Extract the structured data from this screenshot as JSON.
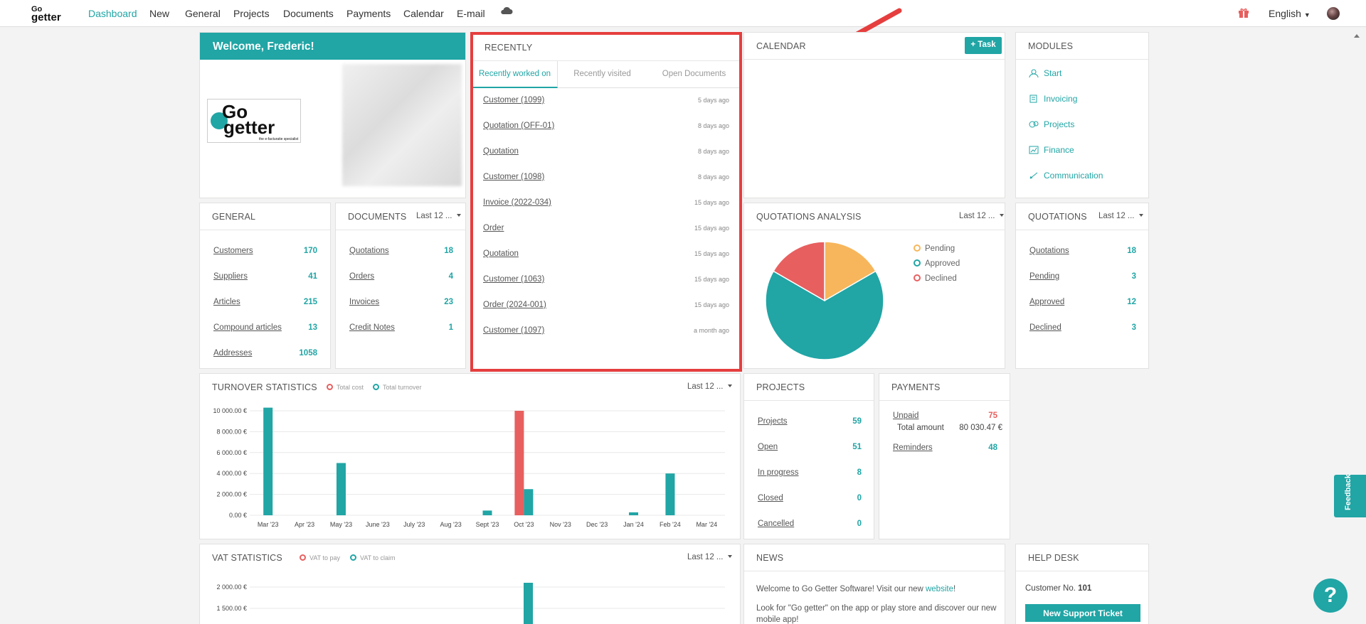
{
  "nav": {
    "logo_top": "Go",
    "logo_bottom": "getter",
    "items": [
      "Dashboard",
      "New",
      "General",
      "Projects",
      "Documents",
      "Payments",
      "Calendar",
      "E-mail"
    ],
    "language": "English"
  },
  "welcome": {
    "title": "Welcome, Frederic!",
    "logo_line1": "Go",
    "logo_line2": "getter",
    "logo_tagline": "the e-facturatie specialist"
  },
  "recently": {
    "title": "RECENTLY",
    "tabs": [
      "Recently worked on",
      "Recently visited",
      "Open Documents"
    ],
    "items": [
      {
        "label": "Customer (1099)",
        "time": "5 days ago"
      },
      {
        "label": "Quotation (OFF-01)",
        "time": "8 days ago"
      },
      {
        "label": "Quotation",
        "time": "8 days ago"
      },
      {
        "label": "Customer (1098)",
        "time": "8 days ago"
      },
      {
        "label": "Invoice (2022-034)",
        "time": "15 days ago"
      },
      {
        "label": "Order",
        "time": "15 days ago"
      },
      {
        "label": "Quotation",
        "time": "15 days ago"
      },
      {
        "label": "Customer (1063)",
        "time": "15 days ago"
      },
      {
        "label": "Order (2024-001)",
        "time": "15 days ago"
      },
      {
        "label": "Customer (1097)",
        "time": "a month ago"
      }
    ]
  },
  "calendar": {
    "title": "CALENDAR",
    "task_button": "+ Task"
  },
  "modules": {
    "title": "MODULES",
    "items": [
      "Start",
      "Invoicing",
      "Projects",
      "Finance",
      "Communication"
    ]
  },
  "general": {
    "title": "GENERAL",
    "rows": [
      {
        "label": "Customers",
        "value": "170"
      },
      {
        "label": "Suppliers",
        "value": "41"
      },
      {
        "label": "Articles",
        "value": "215"
      },
      {
        "label": "Compound articles",
        "value": "13"
      },
      {
        "label": "Addresses",
        "value": "1058"
      }
    ]
  },
  "documents": {
    "title": "DOCUMENTS",
    "filter": "Last 12 ...",
    "rows": [
      {
        "label": "Quotations",
        "value": "18"
      },
      {
        "label": "Orders",
        "value": "4"
      },
      {
        "label": "Invoices",
        "value": "23"
      },
      {
        "label": "Credit Notes",
        "value": "1"
      }
    ]
  },
  "quotations_analysis": {
    "title": "QUOTATIONS ANALYSIS",
    "filter": "Last 12 ...",
    "legend": [
      "Pending",
      "Approved",
      "Declined"
    ],
    "colors": [
      "#f7b65b",
      "#21a5a5",
      "#e85f5f"
    ]
  },
  "quotations": {
    "title": "QUOTATIONS",
    "filter": "Last 12 ...",
    "rows": [
      {
        "label": "Quotations",
        "value": "18"
      },
      {
        "label": "Pending",
        "value": "3"
      },
      {
        "label": "Approved",
        "value": "12"
      },
      {
        "label": "Declined",
        "value": "3"
      }
    ]
  },
  "turnover": {
    "title": "TURNOVER STATISTICS",
    "legend": [
      "Total cost",
      "Total turnover"
    ],
    "filter": "Last 12 ..."
  },
  "projects": {
    "title": "PROJECTS",
    "rows": [
      {
        "label": "Projects",
        "value": "59"
      },
      {
        "label": "Open",
        "value": "51"
      },
      {
        "label": "In progress",
        "value": "8"
      },
      {
        "label": "Closed",
        "value": "0"
      },
      {
        "label": "Cancelled",
        "value": "0"
      }
    ]
  },
  "payments": {
    "title": "PAYMENTS",
    "unpaid_label": "Unpaid",
    "unpaid_value": "75",
    "total_label": "Total amount",
    "total_value": "80 030.47 €",
    "reminders_label": "Reminders",
    "reminders_value": "48"
  },
  "vat": {
    "title": "VAT STATISTICS",
    "legend": [
      "VAT to pay",
      "VAT to claim"
    ],
    "filter": "Last 12 ..."
  },
  "news": {
    "title": "NEWS",
    "line1_pre": "Welcome to Go Getter Software! Visit our new ",
    "line1_link": "website",
    "line1_post": "!",
    "line2": "Look for \"Go getter\" on the app or play store and discover our new mobile app!"
  },
  "helpdesk": {
    "title": "HELP DESK",
    "customer_label": "Customer No.",
    "customer_no": "101",
    "button": "New Support Ticket"
  },
  "feedback": "Feedback",
  "help_symbol": "?",
  "chart_data": [
    {
      "type": "pie",
      "title": "QUOTATIONS ANALYSIS",
      "categories": [
        "Pending",
        "Approved",
        "Declined"
      ],
      "values": [
        3,
        12,
        3
      ]
    },
    {
      "type": "bar",
      "title": "TURNOVER STATISTICS",
      "categories": [
        "Mar '23",
        "Apr '23",
        "May '23",
        "June '23",
        "July '23",
        "Aug '23",
        "Sept '23",
        "Oct '23",
        "Nov '23",
        "Dec '23",
        "Jan '24",
        "Feb '24",
        "Mar '24"
      ],
      "series": [
        {
          "name": "Total cost",
          "values": [
            0,
            0,
            0,
            0,
            0,
            0,
            0,
            10000,
            0,
            0,
            0,
            0,
            0
          ]
        },
        {
          "name": "Total turnover",
          "values": [
            10300,
            0,
            5000,
            0,
            0,
            0,
            450,
            2500,
            0,
            0,
            280,
            4000,
            0
          ]
        }
      ],
      "yticks": [
        "0.00 €",
        "2 000.00 €",
        "4 000.00 €",
        "6 000.00 €",
        "8 000.00 €",
        "10 000.00 €"
      ],
      "ylim": [
        0,
        10000
      ]
    },
    {
      "type": "bar",
      "title": "VAT STATISTICS",
      "series": [
        {
          "name": "VAT to claim",
          "values": [
            2100
          ]
        }
      ],
      "yticks": [
        "1 500.00 €",
        "2 000.00 €"
      ]
    }
  ]
}
